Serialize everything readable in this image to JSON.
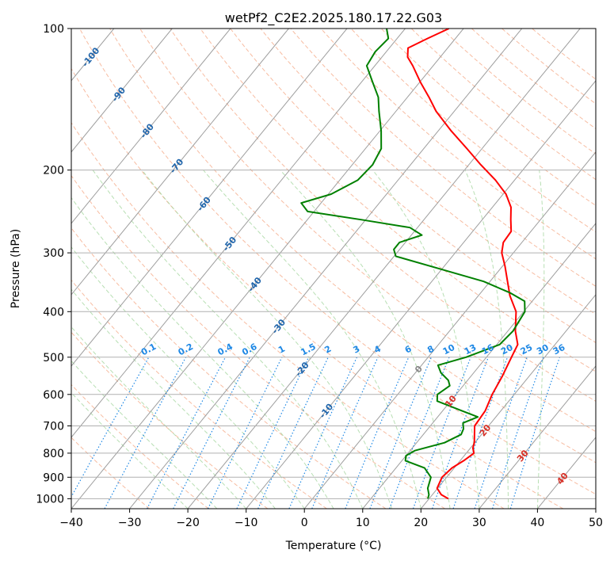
{
  "chart_data": {
    "type": "line",
    "chart_kind": "skew-T log-P",
    "title": "wetPf2_C2E2.2025.180.17.22.G03",
    "xlabel": "Temperature (°C)",
    "ylabel": "Pressure (hPa)",
    "xlim": [
      -40,
      50
    ],
    "ylim": [
      1050,
      100
    ],
    "y_scale": "log",
    "x_ticks": [
      -40,
      -30,
      -20,
      -10,
      0,
      10,
      20,
      30,
      40,
      50
    ],
    "y_ticks": [
      100,
      200,
      300,
      400,
      500,
      600,
      700,
      800,
      900,
      1000
    ],
    "grid": true,
    "isotherms_skewed": true,
    "colors": {
      "temperature": "#ff0000",
      "dewpoint": "#008000",
      "isotherm": "#9e9e9e",
      "dry_adiabat": "#f4a582",
      "moist_adiabat": "#a6d7a0",
      "mixing_ratio": "#1e88e5",
      "isotherm_label": "#2166ac",
      "mixing_ratio_label": "#1e88e5",
      "dry_adiabat_label": "#d73027"
    },
    "isotherm_labels": [
      "-100",
      "-90",
      "-80",
      "-70",
      "-60",
      "-50",
      "-40",
      "-30",
      "-20",
      "-10",
      "0",
      "10",
      "20",
      "30",
      "40"
    ],
    "mixing_ratio_labels": [
      "0.1",
      "0.2",
      "0.4",
      "0.6",
      "1",
      "1.5",
      "2",
      "3",
      "4",
      "6",
      "8",
      "10",
      "13",
      "16",
      "20",
      "25",
      "30",
      "36"
    ],
    "series": [
      {
        "role": "temperature",
        "points": [
          [
            1000,
            23.3
          ],
          [
            980,
            21.5
          ],
          [
            950,
            19.9
          ],
          [
            900,
            19.2
          ],
          [
            860,
            19.6
          ],
          [
            830,
            20.6
          ],
          [
            800,
            21.3
          ],
          [
            780,
            20.4
          ],
          [
            760,
            19.9
          ],
          [
            700,
            17.6
          ],
          [
            680,
            17.5
          ],
          [
            650,
            17.3
          ],
          [
            600,
            16.2
          ],
          [
            550,
            15.4
          ],
          [
            500,
            14.3
          ],
          [
            470,
            13.6
          ],
          [
            440,
            11.3
          ],
          [
            400,
            8.7
          ],
          [
            370,
            5.4
          ],
          [
            345,
            3.0
          ],
          [
            320,
            0.4
          ],
          [
            300,
            -2.0
          ],
          [
            285,
            -3.2
          ],
          [
            270,
            -3.4
          ],
          [
            255,
            -5.1
          ],
          [
            240,
            -6.8
          ],
          [
            225,
            -9.5
          ],
          [
            210,
            -13.3
          ],
          [
            195,
            -17.9
          ],
          [
            180,
            -22.6
          ],
          [
            165,
            -27.8
          ],
          [
            150,
            -33.1
          ],
          [
            140,
            -36.3
          ],
          [
            130,
            -39.9
          ],
          [
            120,
            -43.5
          ],
          [
            115,
            -45.6
          ],
          [
            110,
            -46.8
          ],
          [
            105,
            -44.8
          ],
          [
            100,
            -42.5
          ]
        ]
      },
      {
        "role": "dewpoint",
        "points": [
          [
            1000,
            19.8
          ],
          [
            980,
            19.4
          ],
          [
            950,
            18.3
          ],
          [
            900,
            17.3
          ],
          [
            860,
            14.9
          ],
          [
            830,
            10.6
          ],
          [
            810,
            10.0
          ],
          [
            790,
            10.8
          ],
          [
            760,
            14.8
          ],
          [
            730,
            16.5
          ],
          [
            710,
            16.1
          ],
          [
            690,
            15.2
          ],
          [
            670,
            16.9
          ],
          [
            650,
            13.3
          ],
          [
            620,
            7.7
          ],
          [
            600,
            6.8
          ],
          [
            575,
            7.7
          ],
          [
            560,
            6.7
          ],
          [
            540,
            4.4
          ],
          [
            520,
            2.8
          ],
          [
            500,
            6.5
          ],
          [
            470,
            10.5
          ],
          [
            440,
            10.9
          ],
          [
            400,
            10.2
          ],
          [
            380,
            8.7
          ],
          [
            365,
            5.1
          ],
          [
            345,
            -1.1
          ],
          [
            325,
            -10.1
          ],
          [
            305,
            -19.7
          ],
          [
            295,
            -21.0
          ],
          [
            285,
            -21.0
          ],
          [
            275,
            -18.2
          ],
          [
            265,
            -21.3
          ],
          [
            255,
            -30.7
          ],
          [
            245,
            -41.1
          ],
          [
            235,
            -43.4
          ],
          [
            225,
            -39.5
          ],
          [
            210,
            -36.9
          ],
          [
            195,
            -36.5
          ],
          [
            180,
            -37.3
          ],
          [
            165,
            -39.8
          ],
          [
            150,
            -42.9
          ],
          [
            140,
            -45.0
          ],
          [
            130,
            -48.1
          ],
          [
            120,
            -51.4
          ],
          [
            112,
            -51.9
          ],
          [
            105,
            -51.5
          ],
          [
            100,
            -53.2
          ]
        ]
      }
    ]
  }
}
